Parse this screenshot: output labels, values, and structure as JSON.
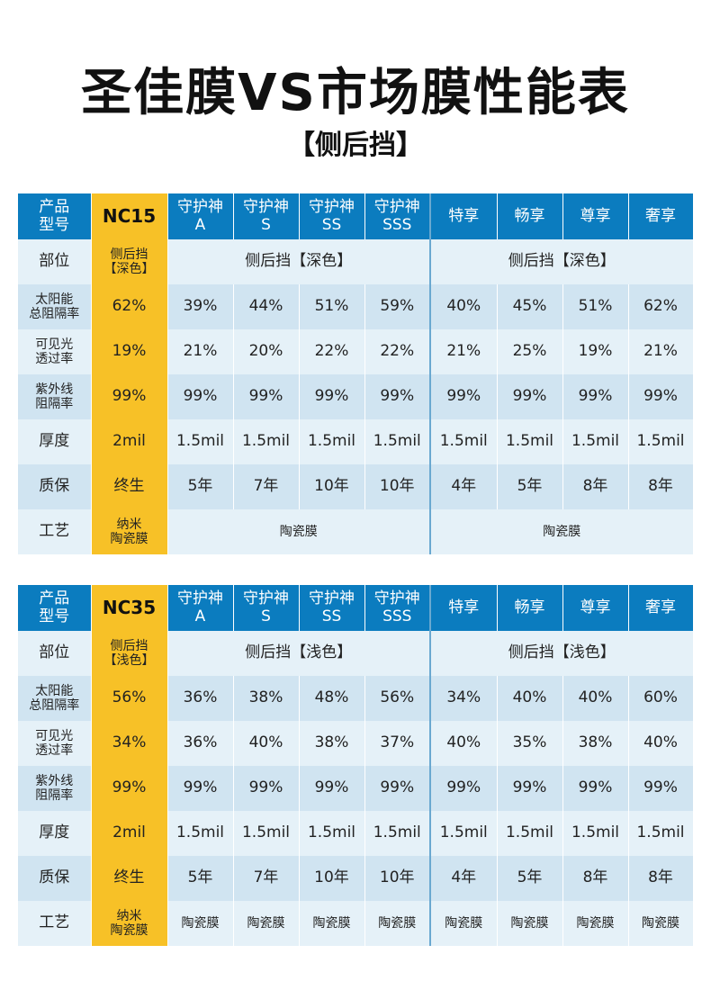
{
  "title": "圣佳膜VS市场膜性能表",
  "subtitle": "【侧后挡】",
  "tables": [
    {
      "header": [
        "产品\n型号",
        "NC15",
        "守护神\nA",
        "守护神\nS",
        "守护神\nSS",
        "守护神\nSSS",
        "特享",
        "畅享",
        "尊享",
        "奢享"
      ],
      "rows": [
        {
          "label": "部位",
          "nc": "侧后挡\n【深色】",
          "groupA": "侧后挡【深色】",
          "groupB": "侧后挡【深色】"
        },
        {
          "label": "太阳能\n总阻隔率",
          "nc": "62%",
          "values": [
            "39%",
            "44%",
            "51%",
            "59%",
            "40%",
            "45%",
            "51%",
            "62%"
          ]
        },
        {
          "label": "可见光\n透过率",
          "nc": "19%",
          "values": [
            "21%",
            "20%",
            "22%",
            "22%",
            "21%",
            "25%",
            "19%",
            "21%"
          ]
        },
        {
          "label": "紫外线\n阻隔率",
          "nc": "99%",
          "values": [
            "99%",
            "99%",
            "99%",
            "99%",
            "99%",
            "99%",
            "99%",
            "99%"
          ]
        },
        {
          "label": "厚度",
          "nc": "2mil",
          "values": [
            "1.5mil",
            "1.5mil",
            "1.5mil",
            "1.5mil",
            "1.5mil",
            "1.5mil",
            "1.5mil",
            "1.5mil"
          ]
        },
        {
          "label": "质保",
          "nc": "终生",
          "values": [
            "5年",
            "7年",
            "10年",
            "10年",
            "4年",
            "5年",
            "8年",
            "8年"
          ]
        },
        {
          "label": "工艺",
          "nc": "纳米\n陶瓷膜",
          "groupA": "陶瓷膜",
          "groupB": "陶瓷膜"
        }
      ]
    },
    {
      "header": [
        "产品\n型号",
        "NC35",
        "守护神\nA",
        "守护神\nS",
        "守护神\nSS",
        "守护神\nSSS",
        "特享",
        "畅享",
        "尊享",
        "奢享"
      ],
      "rows": [
        {
          "label": "部位",
          "nc": "侧后挡\n【浅色】",
          "groupA": "侧后挡【浅色】",
          "groupB": "侧后挡【浅色】"
        },
        {
          "label": "太阳能\n总阻隔率",
          "nc": "56%",
          "values": [
            "36%",
            "38%",
            "48%",
            "56%",
            "34%",
            "40%",
            "40%",
            "60%"
          ]
        },
        {
          "label": "可见光\n透过率",
          "nc": "34%",
          "values": [
            "36%",
            "40%",
            "38%",
            "37%",
            "40%",
            "35%",
            "38%",
            "40%"
          ]
        },
        {
          "label": "紫外线\n阻隔率",
          "nc": "99%",
          "values": [
            "99%",
            "99%",
            "99%",
            "99%",
            "99%",
            "99%",
            "99%",
            "99%"
          ]
        },
        {
          "label": "厚度",
          "nc": "2mil",
          "values": [
            "1.5mil",
            "1.5mil",
            "1.5mil",
            "1.5mil",
            "1.5mil",
            "1.5mil",
            "1.5mil",
            "1.5mil"
          ]
        },
        {
          "label": "质保",
          "nc": "终生",
          "values": [
            "5年",
            "7年",
            "10年",
            "10年",
            "4年",
            "5年",
            "8年",
            "8年"
          ]
        },
        {
          "label": "工艺",
          "nc": "纳米\n陶瓷膜",
          "values": [
            "陶瓷膜",
            "陶瓷膜",
            "陶瓷膜",
            "陶瓷膜",
            "陶瓷膜",
            "陶瓷膜",
            "陶瓷膜",
            "陶瓷膜"
          ]
        }
      ]
    }
  ]
}
